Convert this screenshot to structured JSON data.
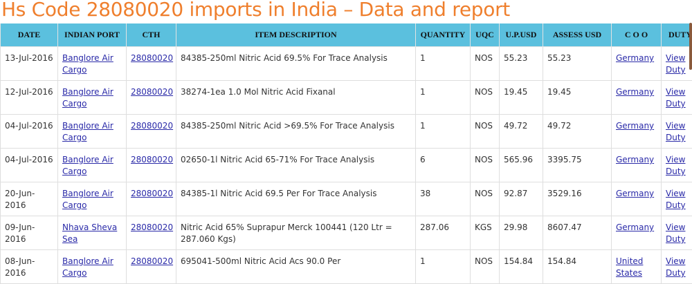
{
  "title": "Hs Code 28080020 imports in India – Data and report",
  "columns": [
    "DATE",
    "INDIAN PORT",
    "CTH",
    "ITEM DESCRIPTION",
    "QUANTITY",
    "UQC",
    "U.P.USD",
    "ASSESS USD",
    "C O O",
    "DUTY"
  ],
  "rows": [
    {
      "date": "13-Jul-2016",
      "port": "Banglore Air Cargo",
      "cth": "28080020",
      "desc": "84385-250ml Nitric Acid 69.5% For Trace Analysis",
      "qty": "1",
      "uqc": "NOS",
      "up": "55.23",
      "assess": "55.23",
      "coo": "Germany",
      "duty": "View Duty"
    },
    {
      "date": "12-Jul-2016",
      "port": "Banglore Air Cargo",
      "cth": "28080020",
      "desc": "38274-1ea 1.0 Mol Nitric Acid Fixanal",
      "qty": "1",
      "uqc": "NOS",
      "up": "19.45",
      "assess": "19.45",
      "coo": "Germany",
      "duty": "View Duty"
    },
    {
      "date": "04-Jul-2016",
      "port": "Banglore Air Cargo",
      "cth": "28080020",
      "desc": "84385-250ml Nitric Acid >69.5% For Trace Analysis",
      "qty": "1",
      "uqc": "NOS",
      "up": "49.72",
      "assess": "49.72",
      "coo": "Germany",
      "duty": "View Duty"
    },
    {
      "date": "04-Jul-2016",
      "port": "Banglore Air Cargo",
      "cth": "28080020",
      "desc": "02650-1l Nitric Acid 65-71% For Trace Analysis",
      "qty": "6",
      "uqc": "NOS",
      "up": "565.96",
      "assess": "3395.75",
      "coo": "Germany",
      "duty": "View Duty"
    },
    {
      "date": "20-Jun-2016",
      "port": "Banglore Air Cargo",
      "cth": "28080020",
      "desc": "84385-1l Nitric Acid 69.5 Per For Trace Analysis",
      "qty": "38",
      "uqc": "NOS",
      "up": "92.87",
      "assess": "3529.16",
      "coo": "Germany",
      "duty": "View Duty"
    },
    {
      "date": "09-Jun-2016",
      "port": "Nhava Sheva Sea",
      "cth": "28080020",
      "desc": "Nitric Acid 65% Suprapur Merck 100441 (120 Ltr = 287.060 Kgs)",
      "qty": "287.06",
      "uqc": "KGS",
      "up": "29.98",
      "assess": "8607.47",
      "coo": "Germany",
      "duty": "View Duty"
    },
    {
      "date": "08-Jun-2016",
      "port": "Banglore Air Cargo",
      "cth": "28080020",
      "desc": "695041-500ml Nitric Acid Acs 90.0 Per",
      "qty": "1",
      "uqc": "NOS",
      "up": "154.84",
      "assess": "154.84",
      "coo": "United States",
      "duty": "View Duty"
    }
  ]
}
